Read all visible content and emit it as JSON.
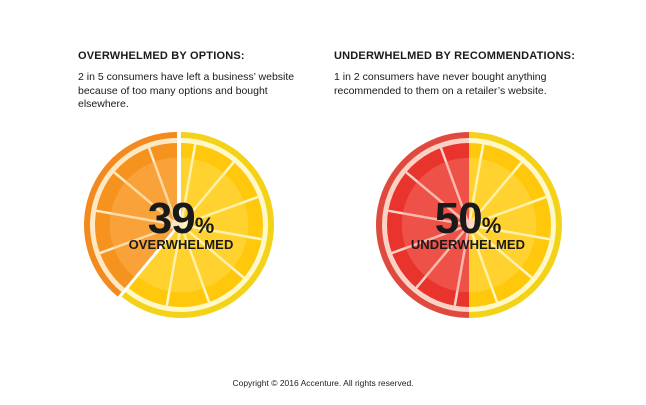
{
  "chart_data": [
    {
      "type": "pie",
      "title": "OVERWHELMED BY OPTIONS:",
      "description": "2 in 5 consumers have left a business’ website because of too many options and bought elsewhere.",
      "value": 39,
      "value_suffix": "%",
      "label": "OVERWHELMED",
      "slices": [
        {
          "name": "overwhelmed",
          "value": 39,
          "color": "#f07f1e"
        },
        {
          "name": "other",
          "value": 61,
          "color": "#ffcc10"
        }
      ]
    },
    {
      "type": "pie",
      "title": "UNDERWHELMED BY RECOMMENDATIONS:",
      "description": "1 in 2 consumers have never bought anything recommended to them on a retailer’s website.",
      "value": 50,
      "value_suffix": "%",
      "label": "UNDERWHELMED",
      "slices": [
        {
          "name": "underwhelmed",
          "value": 50,
          "color": "#e8302a"
        },
        {
          "name": "other",
          "value": 50,
          "color": "#ffcc10"
        }
      ]
    }
  ],
  "footer": "Copyright © 2016 Accenture. All rights reserved."
}
